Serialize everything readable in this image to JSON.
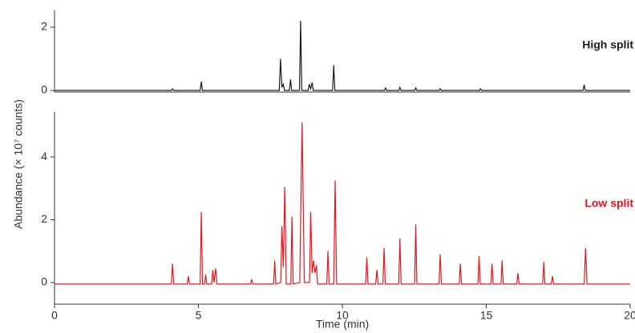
{
  "ylabel": "Abundance (× 10⁷ counts)",
  "chart_data": [
    {
      "type": "line",
      "xlim": [
        0,
        20
      ],
      "ylim": [
        -0.05,
        2.53
      ],
      "yticks": [
        0,
        2
      ],
      "x": [
        0,
        4.06,
        4.1,
        4.14,
        5.06,
        5.1,
        5.14,
        7.81,
        7.85,
        7.9,
        7.95,
        7.99,
        8.16,
        8.2,
        8.24,
        8.51,
        8.55,
        8.59,
        8.81,
        8.85,
        8.9,
        8.95,
        8.99,
        9.66,
        9.7,
        9.74,
        11.46,
        11.5,
        11.54,
        11.96,
        12.0,
        12.04,
        12.51,
        12.55,
        12.59,
        13.36,
        13.4,
        13.44,
        14.76,
        14.8,
        14.84,
        18.36,
        18.4,
        18.44,
        20
      ],
      "series": [
        {
          "name": "High split",
          "color": "#1a1a1a",
          "values": [
            0,
            0,
            0.05,
            0,
            0,
            0.28,
            0,
            0,
            1.0,
            0.1,
            0.2,
            0,
            0,
            0.35,
            0,
            0,
            2.2,
            0,
            0,
            0.2,
            0.05,
            0.25,
            0,
            0,
            0.8,
            0,
            0,
            0.08,
            0,
            0,
            0.1,
            0,
            0,
            0.08,
            0,
            0,
            0.05,
            0,
            0,
            0.05,
            0,
            0,
            0.18,
            0,
            0
          ]
        }
      ]
    },
    {
      "type": "line",
      "xlim": [
        0,
        20
      ],
      "xticks": [
        0,
        5,
        10,
        15,
        20
      ],
      "xlabel": "Time (min)",
      "ylim": [
        -0.69,
        5.43
      ],
      "yticks": [
        0,
        2,
        4
      ],
      "x": [
        0,
        4.06,
        4.1,
        4.14,
        4.61,
        4.65,
        4.69,
        5.06,
        5.1,
        5.14,
        5.21,
        5.25,
        5.29,
        5.46,
        5.5,
        5.54,
        5.6,
        5.64,
        6.81,
        6.85,
        6.89,
        7.61,
        7.65,
        7.69,
        7.86,
        7.9,
        7.95,
        8.0,
        8.05,
        8.21,
        8.25,
        8.29,
        8.52,
        8.6,
        8.68,
        8.86,
        8.9,
        8.95,
        9.0,
        9.05,
        9.1,
        9.14,
        9.46,
        9.5,
        9.54,
        9.7,
        9.75,
        9.8,
        10.81,
        10.85,
        10.89,
        11.16,
        11.2,
        11.24,
        11.41,
        11.45,
        11.49,
        11.96,
        12.0,
        12.04,
        12.51,
        12.55,
        12.59,
        13.36,
        13.4,
        13.44,
        14.06,
        14.1,
        14.14,
        14.71,
        14.75,
        14.79,
        15.16,
        15.2,
        15.24,
        15.51,
        15.55,
        15.59,
        16.06,
        16.1,
        16.14,
        16.96,
        17.0,
        17.04,
        17.26,
        17.3,
        17.34,
        18.4,
        18.45,
        18.5,
        20
      ],
      "series": [
        {
          "name": "Low split",
          "color": "#e8141b",
          "values": [
            -0.05,
            -0.05,
            0.6,
            -0.05,
            -0.05,
            0.2,
            -0.05,
            -0.05,
            2.25,
            -0.05,
            -0.05,
            0.25,
            -0.05,
            -0.05,
            0.4,
            0.0,
            0.45,
            -0.05,
            -0.05,
            0.1,
            -0.05,
            -0.05,
            0.7,
            -0.05,
            0.0,
            1.8,
            0.5,
            3.05,
            -0.05,
            -0.05,
            2.1,
            -0.05,
            0.0,
            5.1,
            0.0,
            0.0,
            2.25,
            0.3,
            0.7,
            0.3,
            0.55,
            -0.05,
            -0.05,
            1.0,
            -0.05,
            -0.05,
            3.25,
            -0.05,
            -0.05,
            0.8,
            -0.05,
            -0.05,
            0.4,
            -0.05,
            -0.05,
            1.1,
            -0.05,
            -0.05,
            1.4,
            -0.05,
            -0.05,
            1.85,
            -0.05,
            -0.05,
            0.9,
            -0.05,
            -0.05,
            0.6,
            -0.05,
            -0.05,
            0.85,
            -0.05,
            -0.05,
            0.6,
            -0.05,
            -0.05,
            0.7,
            -0.05,
            -0.05,
            0.3,
            -0.05,
            -0.05,
            0.65,
            -0.05,
            -0.05,
            0.2,
            -0.05,
            -0.05,
            1.1,
            -0.05,
            -0.05
          ]
        }
      ]
    }
  ]
}
